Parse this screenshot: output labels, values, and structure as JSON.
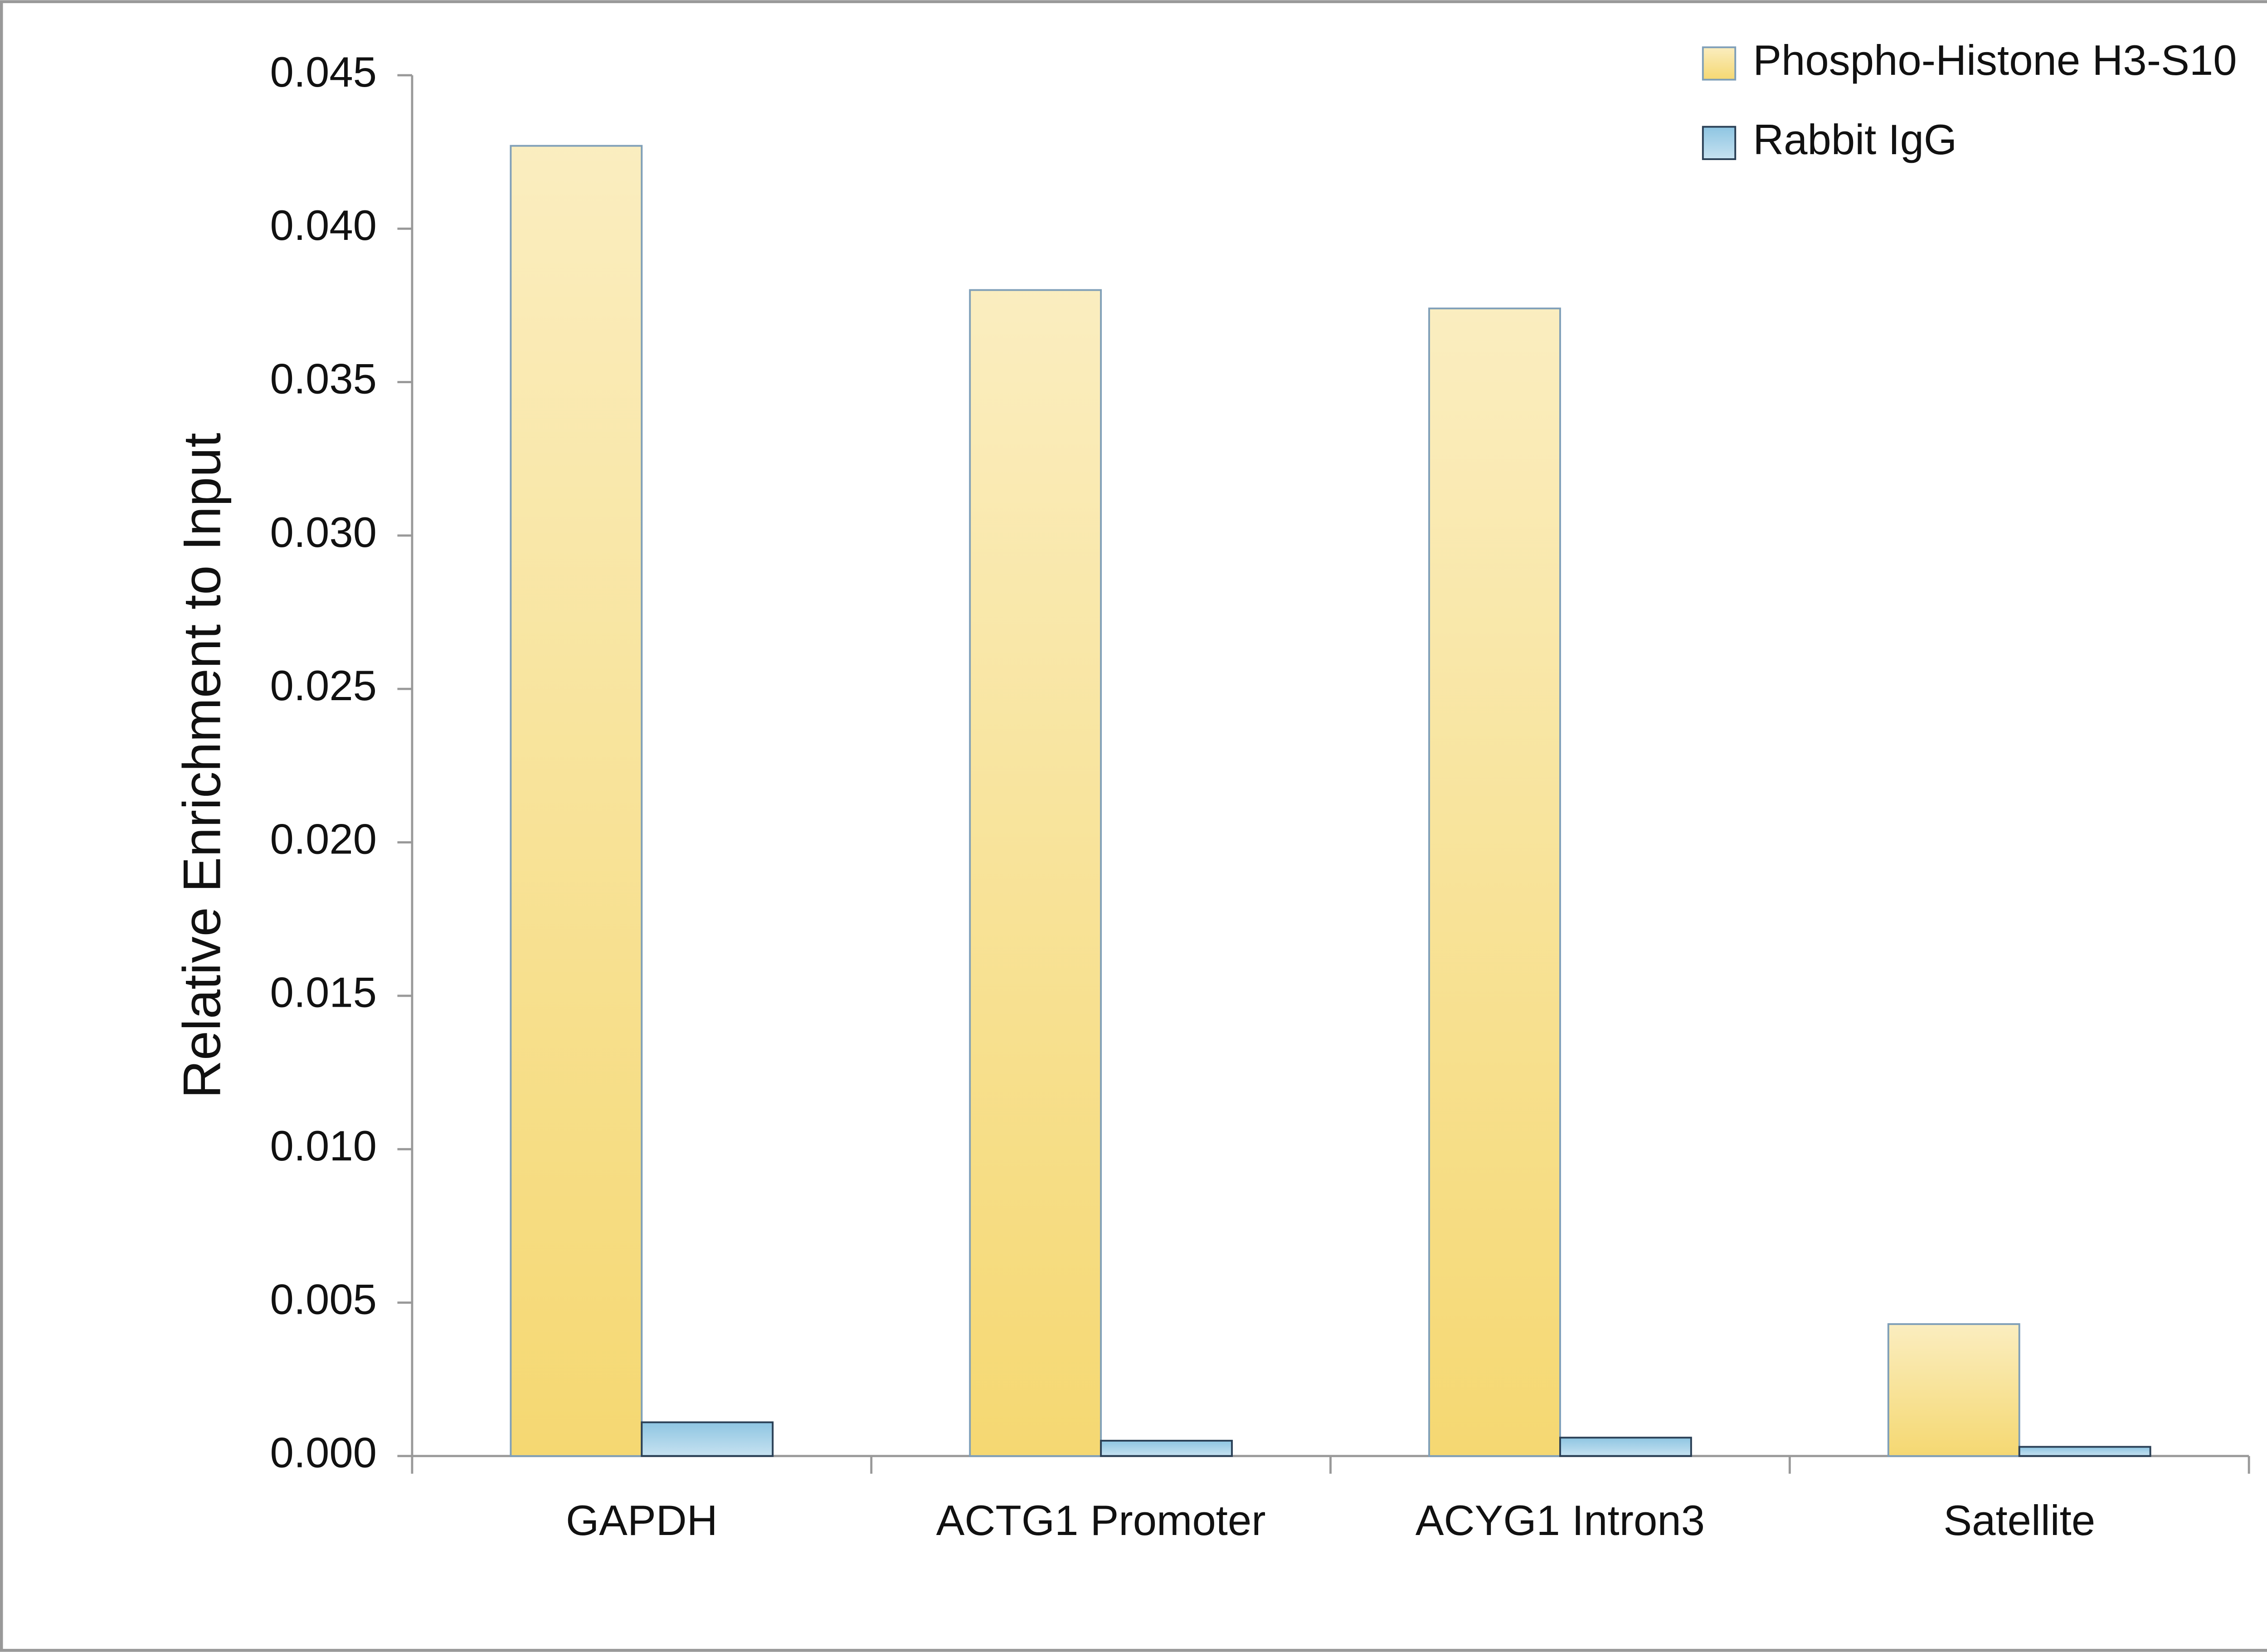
{
  "chart_data": {
    "type": "bar",
    "y_label": "Relative Enrichment to Input",
    "categories": [
      "GAPDH",
      "ACTG1 Promoter",
      "ACYG1 Intron3",
      "Satellite"
    ],
    "series": [
      {
        "name": "Phospho-Histone H3-S10",
        "color": "#f5d872",
        "values": [
          0.0427,
          0.038,
          0.0374,
          0.0043
        ]
      },
      {
        "name": "Rabbit IgG",
        "color": "#8ec5e2",
        "values": [
          0.0011,
          0.0005,
          0.0006,
          0.0003
        ]
      }
    ],
    "ylim": [
      0,
      0.045
    ],
    "yticks": [
      {
        "value": 0,
        "label": "0.000"
      },
      0.005,
      {
        "value": 0.01,
        "label": "0.010"
      },
      0.015,
      {
        "value": 0.02,
        "label": "0.020"
      },
      0.025,
      {
        "value": 0.03,
        "label": "0.030"
      },
      0.035,
      {
        "value": 0.04,
        "label": "0.040"
      },
      0.045
    ],
    "legend": "top-right"
  }
}
